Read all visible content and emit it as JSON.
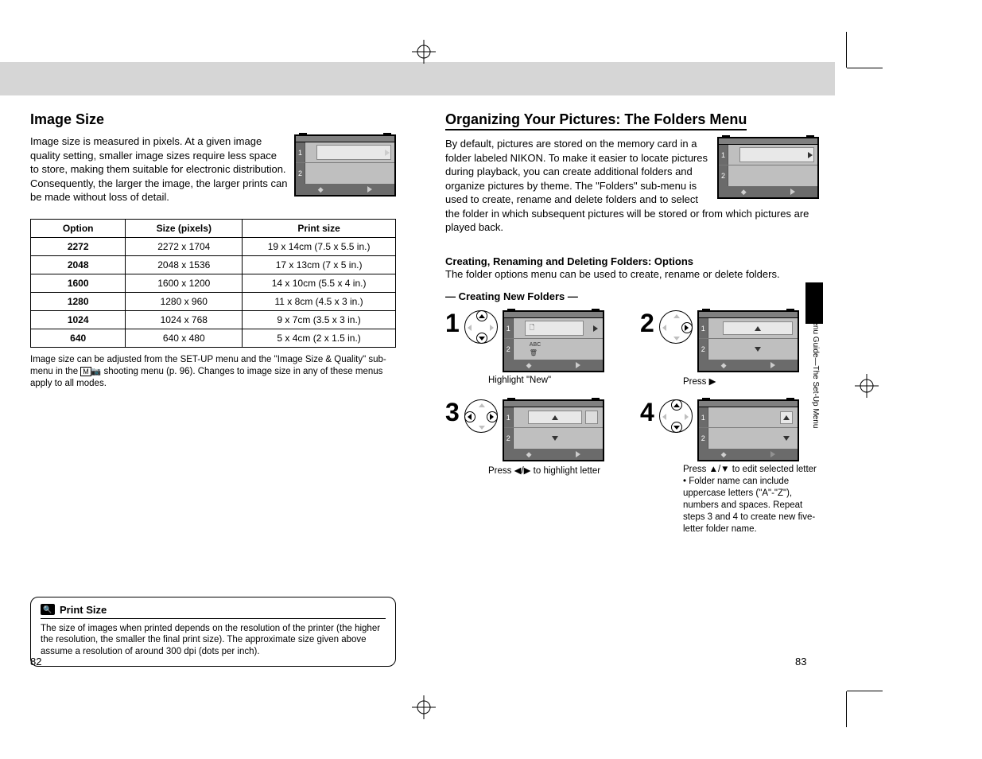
{
  "left_page": {
    "title": "Image Size",
    "intro": "Image size is measured in pixels. At a given image quality setting, smaller image sizes require less space to store, making them suitable for electronic distribution. Consequently, the larger the image, the larger prints can be made without loss of detail.",
    "table": {
      "headers": [
        "Option",
        "Size (pixels)",
        "Print size"
      ],
      "rows": [
        [
          "2272",
          "2272 x 1704",
          "19 x 14cm (7.5 x 5.5 in.)"
        ],
        [
          "2048",
          "2048 x 1536",
          "17 x 13cm (7 x 5 in.)"
        ],
        [
          "1600",
          "1600 x 1200",
          "14 x 10cm (5.5 x 4 in.)"
        ],
        [
          "1280",
          "1280 x 960",
          "11 x 8cm (4.5 x 3 in.)"
        ],
        [
          "1024",
          "1024 x 768",
          "9 x 7cm (3.5 x 3 in.)"
        ],
        [
          "640",
          "640 x 480",
          "5 x 4cm (2 x 1.5 in.)"
        ]
      ],
      "col_widths": [
        "26%",
        "32%",
        "42%"
      ]
    },
    "footnote_pre": "Image size can be adjusted from the SET-UP menu and the \"Image Size & Quality\" sub-menu in the ",
    "footnote_post": " shooting menu (p. 96). Changes to image size in any of these menus apply to all modes.",
    "note": {
      "title": "Print Size",
      "body": "The size of images when printed depends on the resolution of the printer (the higher the resolution, the smaller the final print size). The approximate size given above assume a resolution of around 300 dpi (dots per inch)."
    },
    "page_number": "82"
  },
  "right_page": {
    "title": "Organizing Your Pictures: The Folders Menu",
    "intro": "By default, pictures are stored on the memory card in a folder labeled NIKON. To make it easier to locate pictures during playback, you can create additional folders and organize pictures by theme. The \"Folders\" sub-menu is used to create, rename and delete folders and to select the folder in which subsequent pictures will be stored or from which pictures are played back.",
    "options": {
      "heading": "Creating, Renaming and Deleting Folders: Options",
      "body": "The folder options menu can be used to create, rename or delete folders."
    },
    "creating_heading": "— Creating New Folders —",
    "steps": [
      {
        "n": "1",
        "caption": "Highlight \"New\""
      },
      {
        "n": "2",
        "caption_pre": "Press ",
        "caption_icon": "▶"
      },
      {
        "n": "3",
        "caption_pre": "Press ",
        "caption_mid": "◀/▶",
        "caption_post": " to highlight letter"
      },
      {
        "n": "4",
        "caption_pre": "Press ",
        "caption_mid": "▲/▼",
        "caption_post": " to edit selected letter",
        "note": "• Folder name can include uppercase letters (\"A\"-\"Z\"), numbers and spaces. Repeat steps 3 and 4 to create new five-letter folder name."
      }
    ],
    "side_label": "Menu Guide—The Set-Up Menu",
    "page_number": "83"
  },
  "colors": {
    "gray_band": "#d6d6d6",
    "lcd_body": "#bfbfbf",
    "lcd_dark": "#6b6b6b"
  }
}
